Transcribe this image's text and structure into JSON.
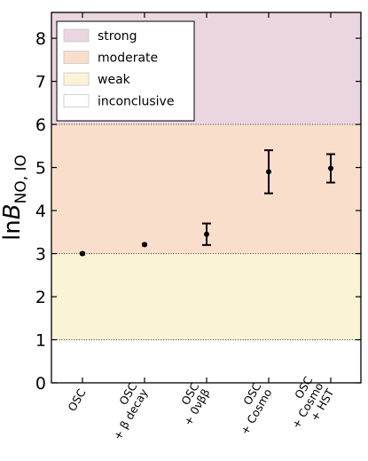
{
  "chart_data": {
    "type": "scatter",
    "title": "",
    "xlabel": "",
    "ylabel": {
      "prefix": "ln",
      "symbol": "B",
      "subscript": "NO, IO"
    },
    "ylim": [
      0,
      8.6
    ],
    "yticks": [
      "0",
      "1",
      "2",
      "3",
      "4",
      "5",
      "6",
      "7",
      "8"
    ],
    "grid": false,
    "legend_position": "top-left",
    "categories": [
      [
        "OSC"
      ],
      [
        "OSC",
        "+ β decay"
      ],
      [
        "OSC",
        "+ 0νββ"
      ],
      [
        "OSC",
        "+ Cosmo"
      ],
      [
        "OSC",
        "+ Cosmo",
        "+ HST"
      ]
    ],
    "points": [
      {
        "y": 3.0,
        "err_low": 0.03,
        "err_high": 0.03
      },
      {
        "y": 3.21,
        "err_low": 0.03,
        "err_high": 0.03
      },
      {
        "y": 3.45,
        "err_low": 0.25,
        "err_high": 0.25
      },
      {
        "y": 4.9,
        "err_low": 0.5,
        "err_high": 0.5
      },
      {
        "y": 4.98,
        "err_low": 0.33,
        "err_high": 0.33
      }
    ],
    "bands": [
      {
        "label": "strong",
        "from": 6,
        "to": 8.6,
        "color": "#ead6e1"
      },
      {
        "label": "moderate",
        "from": 3,
        "to": 6,
        "color": "#f9dfcb"
      },
      {
        "label": "weak",
        "from": 1,
        "to": 3,
        "color": "#fbf3d6"
      },
      {
        "label": "inconclusive",
        "from": 0,
        "to": 1,
        "color": "#ffffff"
      }
    ],
    "marker_color": "#000000"
  }
}
